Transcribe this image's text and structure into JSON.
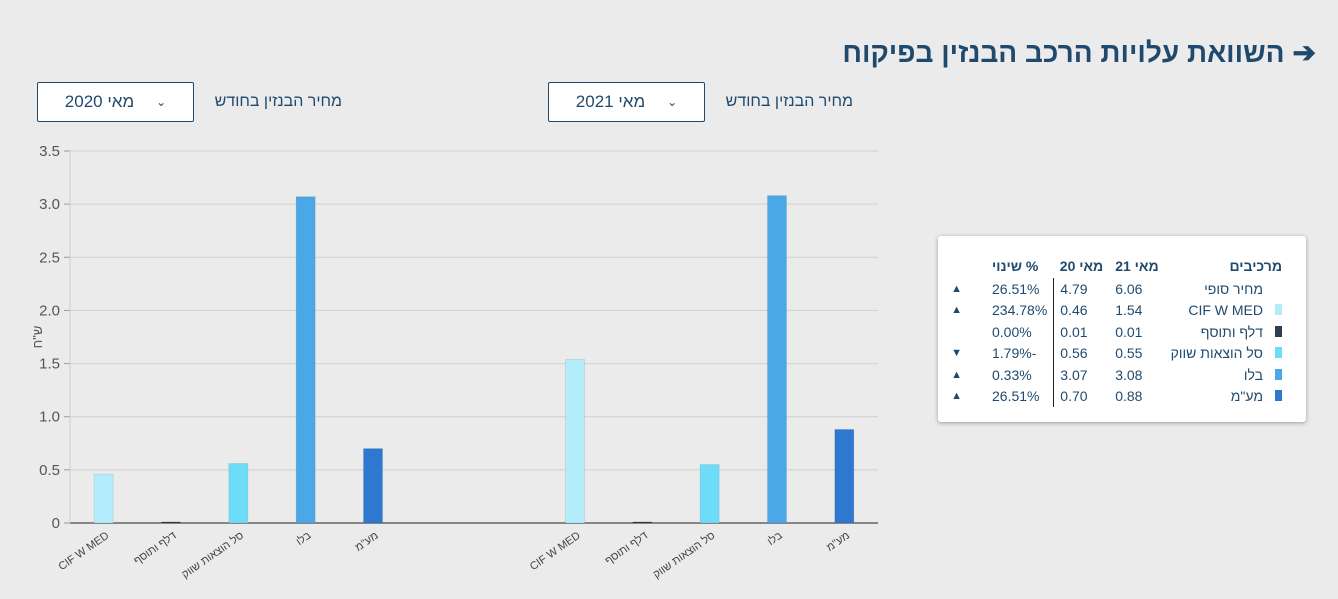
{
  "header": {
    "title": "השוואת עלויות הרכב הבנזין בפיקוח",
    "back_icon": "arrow-right-icon"
  },
  "selectors": [
    {
      "label": "מחיר הבנזין בחודש",
      "value": "מאי 2021"
    },
    {
      "label": "מחיר הבנזין בחודש",
      "value": "מאי 2020"
    }
  ],
  "legend": {
    "headers": [
      "מרכיבים",
      "מאי 21",
      "מאי 20",
      "% שינוי"
    ],
    "rows": [
      {
        "name": "מחיר סופי",
        "color": "",
        "a": "6.06",
        "b": "4.79",
        "change": "26.51%",
        "dir": "up"
      },
      {
        "name": "CIF W MED",
        "color": "#b3ecfb",
        "a": "1.54",
        "b": "0.46",
        "change": "234.78%",
        "dir": "up"
      },
      {
        "name": "דלף ותוסף",
        "color": "#2c3e50",
        "a": "0.01",
        "b": "0.01",
        "change": "0.00%",
        "dir": ""
      },
      {
        "name": "סל הוצאות שווק",
        "color": "#6ddcf9",
        "a": "0.55",
        "b": "0.56",
        "change": "-1.79%",
        "dir": "down"
      },
      {
        "name": "בלו",
        "color": "#4aa8e8",
        "a": "3.08",
        "b": "3.07",
        "change": "0.33%",
        "dir": "up"
      },
      {
        "name": "מע\"מ",
        "color": "#2e78cf",
        "a": "0.88",
        "b": "0.70",
        "change": "26.51%",
        "dir": "up"
      }
    ]
  },
  "chart_data": {
    "type": "bar",
    "ylabel": "ש\"ח",
    "ylim": [
      0,
      3.5
    ],
    "yticks": [
      "0",
      "0.5",
      "1.0",
      "1.5",
      "2.0",
      "2.5",
      "3.0",
      "3.5"
    ],
    "grid": true,
    "categories": [
      "CIF W MED",
      "דלף ותוסף",
      "סל הוצאות שווק",
      "בלו",
      "מע\"מ"
    ],
    "colors": [
      "#b3ecfb",
      "#2c3e50",
      "#6ddcf9",
      "#4aa8e8",
      "#2e78cf"
    ],
    "groups": [
      {
        "values": [
          0.46,
          0.01,
          0.56,
          3.07,
          0.7
        ]
      },
      {
        "values": [
          1.54,
          0.01,
          0.55,
          3.08,
          0.88
        ]
      }
    ]
  }
}
